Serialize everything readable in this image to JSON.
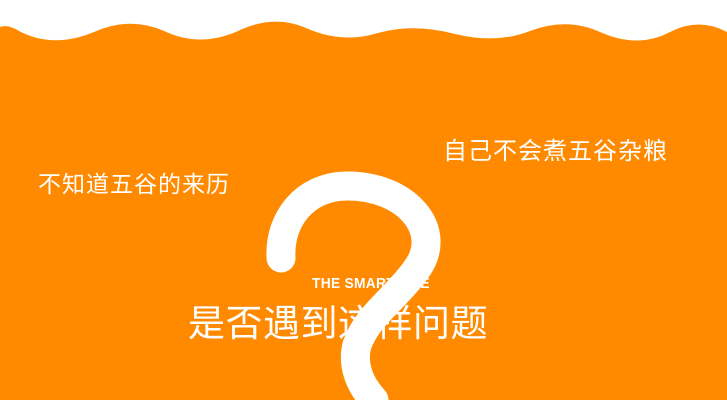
{
  "colors": {
    "background": "#FF8A00",
    "top_strip": "#FFFFFF",
    "text": "#FFFFFF",
    "question_mark": "#FFFFFF"
  },
  "icons": {
    "question_mark": "large-question-mark-icon"
  },
  "labels": {
    "left_question": "不知道五谷的来历",
    "right_question": "自己不会煮五谷杂粮",
    "smart_tag": "THE SMART ONE",
    "main_title": "是否遇到这样问题"
  }
}
